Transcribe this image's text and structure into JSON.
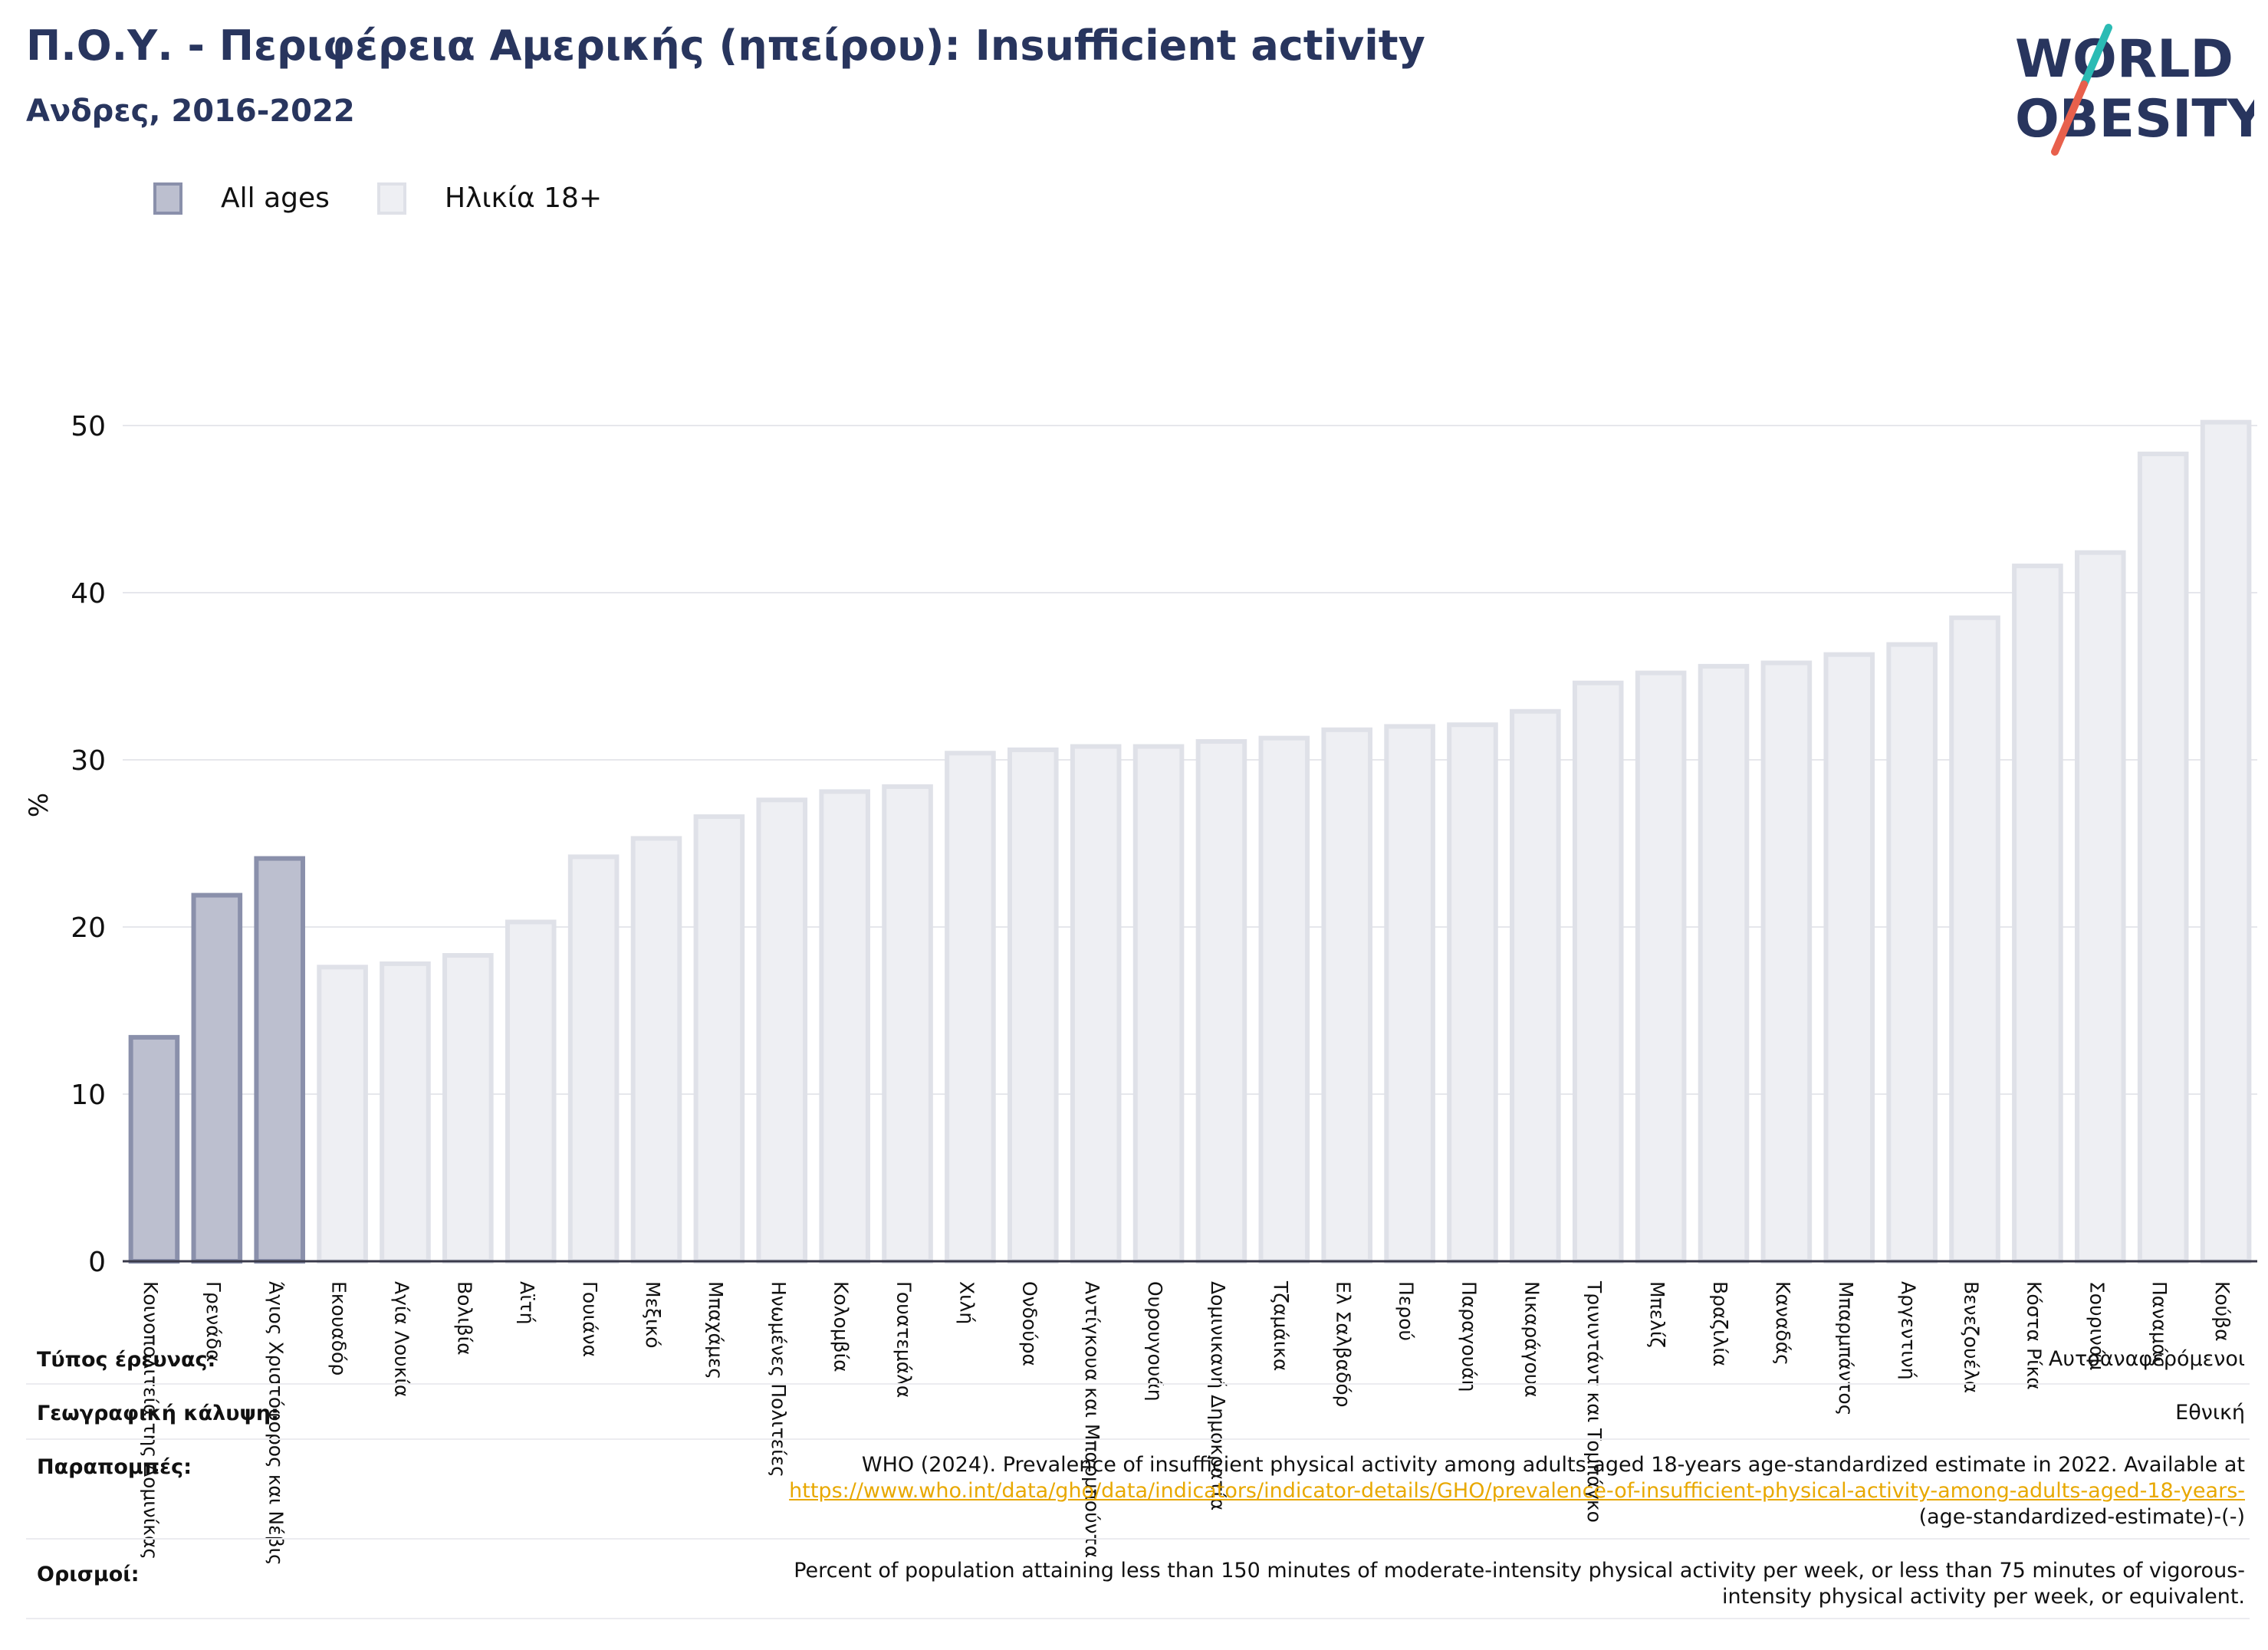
{
  "header": {
    "title": "Π.Ο.Υ. - Περιφέρεια Αμερικής (ηπείρου): Insufficient activity",
    "subtitle": "Ανδρες, 2016-2022"
  },
  "logo": {
    "line1": "WORLD",
    "line2": "OBESITY",
    "accent_colors": [
      "#2bbbb4",
      "#e8604c"
    ]
  },
  "legend": {
    "items": [
      {
        "label": "All ages",
        "fill": "#bcbfcf",
        "stroke": "#8a90ab"
      },
      {
        "label": "Ηλικία 18+",
        "fill": "#eeeff3",
        "stroke": "#dfe1e8"
      }
    ]
  },
  "chart_data": {
    "type": "bar",
    "ylabel": "%",
    "xlabel": "",
    "ylim": [
      0,
      55
    ],
    "yticks": [
      0,
      10,
      20,
      30,
      40,
      50
    ],
    "grid": true,
    "categories": [
      "Κοινοπολιτεία της Δομινίκας",
      "Γρενάδα",
      "Άγιος Χριστόφορος και Νέβις",
      "Εκουαδόρ",
      "Αγία Λουκία",
      "Βολιβία",
      "Αϊτή",
      "Γουιάνα",
      "Μεξικό",
      "Μπαχάμες",
      "Ηνωμένες Πολιτείες",
      "Κολομβία",
      "Γουατεμάλα",
      "Χιλή",
      "Ονδούρα",
      "Αντίγκουα και Μπαρμπούντα",
      "Ουρουγουάη",
      "Δομινικανή Δημοκρατία",
      "Τζαμάικα",
      "Ελ Σαλβαδόρ",
      "Περού",
      "Παραγουάη",
      "Νικαράγουα",
      "Τρινιντάντ και Τομπάγκο",
      "Μπελίζ",
      "Βραζιλία",
      "Καναδάς",
      "Μπαρμπάντος",
      "Αργεντινή",
      "Βενεζουέλα",
      "Κόστα Ρίκα",
      "Σουρινάμ",
      "Παναμάς",
      "Κούβα"
    ],
    "values": [
      13.4,
      21.9,
      24.1,
      17.6,
      17.8,
      18.3,
      20.3,
      24.2,
      25.3,
      26.6,
      27.6,
      28.1,
      28.4,
      30.4,
      30.6,
      30.8,
      30.8,
      31.1,
      31.3,
      31.8,
      32.0,
      32.1,
      32.9,
      34.6,
      35.2,
      35.6,
      35.8,
      36.3,
      36.9,
      38.5,
      41.6,
      42.4,
      48.3,
      50.2
    ],
    "series_group": [
      "All ages",
      "All ages",
      "All ages",
      "Ηλικία 18+",
      "Ηλικία 18+",
      "Ηλικία 18+",
      "Ηλικία 18+",
      "Ηλικία 18+",
      "Ηλικία 18+",
      "Ηλικία 18+",
      "Ηλικία 18+",
      "Ηλικία 18+",
      "Ηλικία 18+",
      "Ηλικία 18+",
      "Ηλικία 18+",
      "Ηλικία 18+",
      "Ηλικία 18+",
      "Ηλικία 18+",
      "Ηλικία 18+",
      "Ηλικία 18+",
      "Ηλικία 18+",
      "Ηλικία 18+",
      "Ηλικία 18+",
      "Ηλικία 18+",
      "Ηλικία 18+",
      "Ηλικία 18+",
      "Ηλικία 18+",
      "Ηλικία 18+",
      "Ηλικία 18+",
      "Ηλικία 18+",
      "Ηλικία 18+",
      "Ηλικία 18+",
      "Ηλικία 18+",
      "Ηλικία 18+"
    ],
    "legend_position": "top-left"
  },
  "meta": {
    "rows": [
      {
        "key": "Τύπος έρευνας:",
        "value": "Αυτοαναφερόμενοι"
      },
      {
        "key": "Γεωγραφική κάλυψη:",
        "value": "Εθνική"
      },
      {
        "key": "Παραπομπές:",
        "value_line1": "WHO (2024). Prevalence of insufficient physical activity among adults aged 18-years age-standardized estimate in 2022. Available at",
        "link": "https://www.who.int/data/gho/data/indicators/indicator-details/GHO/prevalence-of-insufficient-physical-activity-among-adults-aged-18-years-",
        "value_line3": "(age-standardized-estimate)-(-)"
      },
      {
        "key": "Ορισμοί:",
        "value_line1": "Percent of population attaining less than 150 minutes of moderate-intensity physical activity per week, or less than 75 minutes of vigorous-",
        "value_line2": "intensity physical activity per week, or equivalent."
      }
    ]
  }
}
